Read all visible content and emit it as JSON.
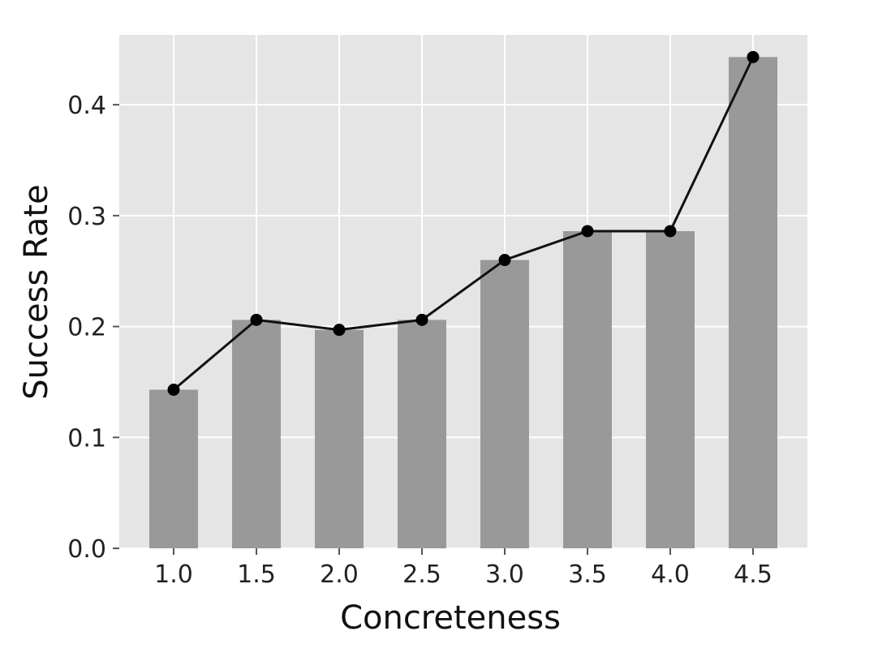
{
  "chart_data": {
    "type": "bar",
    "title": "",
    "xlabel": "Concreteness",
    "ylabel": "Success Rate",
    "categories": [
      "1.0",
      "1.5",
      "2.0",
      "2.5",
      "3.0",
      "3.5",
      "4.0",
      "4.5"
    ],
    "values": [
      0.143,
      0.206,
      0.197,
      0.206,
      0.26,
      0.286,
      0.286,
      0.443
    ],
    "line_values": [
      0.143,
      0.206,
      0.197,
      0.206,
      0.26,
      0.286,
      0.286,
      0.443
    ],
    "ylim": [
      0,
      0.463
    ],
    "yticks": [
      0.0,
      0.1,
      0.2,
      0.3,
      0.4
    ],
    "ytick_labels": [
      "0.0",
      "0.1",
      "0.2",
      "0.3",
      "0.4"
    ],
    "grid": true,
    "legend": "none",
    "colors": {
      "plot_background": "#e5e5e5",
      "grid": "#ffffff",
      "bar": "#999999",
      "line": "#111111",
      "marker": "#000000"
    }
  }
}
